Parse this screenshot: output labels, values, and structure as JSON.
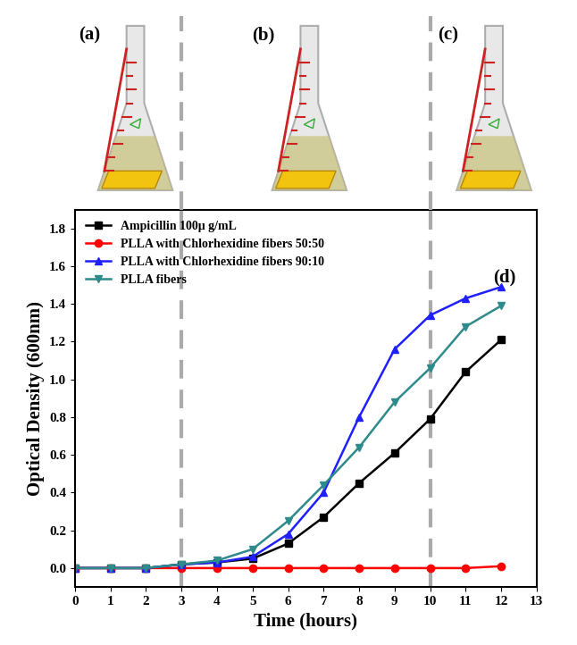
{
  "chart_data": {
    "type": "line",
    "x_label": "Time (hours)",
    "y_label": "Optical Density (600nm)",
    "x": [
      0,
      1,
      2,
      3,
      4,
      5,
      6,
      7,
      8,
      9,
      10,
      11,
      12
    ],
    "xlim": [
      0,
      13
    ],
    "xticks": [
      0,
      1,
      2,
      3,
      4,
      5,
      6,
      7,
      8,
      9,
      10,
      11,
      12,
      13
    ],
    "ylim": [
      -0.1,
      1.9
    ],
    "yticks": [
      {
        "value": 0.0,
        "label": "0.0"
      },
      {
        "value": 0.2,
        "label": "0.2"
      },
      {
        "value": 0.4,
        "label": "0.4"
      },
      {
        "value": 0.6,
        "label": "0.6"
      },
      {
        "value": 0.8,
        "label": "0.8"
      },
      {
        "value": 1.0,
        "label": "1.0"
      },
      {
        "value": 1.2,
        "label": "1.2"
      },
      {
        "value": 1.4,
        "label": "1.4"
      },
      {
        "value": 1.6,
        "label": "1.6"
      },
      {
        "value": 1.8,
        "label": "1.8"
      }
    ],
    "legend": "upper left",
    "dashed_lines": [
      3,
      10
    ],
    "panel_labels": [
      "(a)",
      "(b)",
      "(c)"
    ],
    "annotation": "(d)",
    "series": [
      {
        "name": "Ampicillin 100μ g/mL",
        "color": "#000000",
        "marker": "square",
        "values": [
          0.0,
          0.0,
          0.0,
          0.02,
          0.03,
          0.05,
          0.13,
          0.27,
          0.45,
          0.61,
          0.79,
          1.04,
          1.21
        ]
      },
      {
        "name": "PLLA with Chlorhexidine fibers 50:50",
        "color": "#ff0000",
        "marker": "circle",
        "values": [
          0.0,
          0.0,
          0.0,
          0.0,
          0.0,
          0.0,
          0.0,
          0.0,
          0.0,
          0.0,
          0.0,
          0.0,
          0.01
        ]
      },
      {
        "name": "PLLA with Chlorhexidine fibers 90:10",
        "color": "#1f1fff",
        "marker": "triangle_up",
        "values": [
          0.0,
          0.0,
          0.0,
          0.02,
          0.03,
          0.06,
          0.18,
          0.4,
          0.8,
          1.16,
          1.34,
          1.43,
          1.49
        ]
      },
      {
        "name": "PLLA fibers",
        "color": "#2e8b8b",
        "marker": "triangle_down",
        "values": [
          0.0,
          0.0,
          0.0,
          0.02,
          0.04,
          0.1,
          0.25,
          0.44,
          0.64,
          0.88,
          1.06,
          1.28,
          1.39
        ]
      }
    ]
  }
}
